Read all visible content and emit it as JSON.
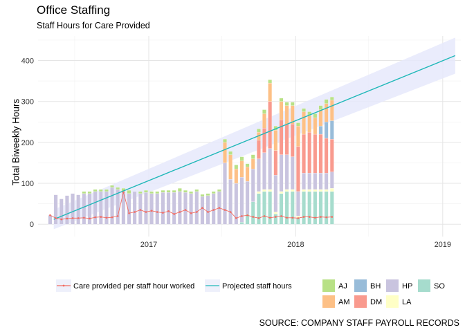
{
  "chart_data": {
    "type": "bar",
    "title": "Office Staffing",
    "subtitle": "Staff Hours for Care Provided",
    "ylabel": "Total Biweekly Hours",
    "xlabel": "",
    "caption": "SOURCE: COMPANY STAFF PAYROLL RECORDS",
    "ylim": [
      -30,
      460
    ],
    "yticks": [
      0,
      100,
      200,
      300,
      400
    ],
    "xlim": [
      "2016-04-01",
      "2019-02-15"
    ],
    "xticks": [
      {
        "date": "2017-01-01",
        "label": "2017"
      },
      {
        "date": "2018-01-01",
        "label": "2018"
      },
      {
        "date": "2019-01-01",
        "label": "2019"
      }
    ],
    "grid": true,
    "legend_position": "bottom",
    "stack_colors": {
      "AJ": "#b8e186",
      "AM": "#fdc086",
      "BH": "#98bcd9",
      "DM": "#f99a8e",
      "HP": "#c9c4df",
      "LA": "#ffffc6",
      "SO": "#a6dccd"
    },
    "stack_order": [
      "SO",
      "LA",
      "HP",
      "DM",
      "BH",
      "AM",
      "AJ"
    ],
    "dates": [
      "2016-05-01",
      "2016-05-15",
      "2016-05-29",
      "2016-06-12",
      "2016-06-26",
      "2016-07-10",
      "2016-07-24",
      "2016-08-07",
      "2016-08-21",
      "2016-09-04",
      "2016-09-18",
      "2016-10-02",
      "2016-10-16",
      "2016-10-30",
      "2016-11-13",
      "2016-11-27",
      "2016-12-11",
      "2016-12-25",
      "2017-01-08",
      "2017-01-22",
      "2017-02-05",
      "2017-02-19",
      "2017-03-05",
      "2017-03-19",
      "2017-04-02",
      "2017-04-16",
      "2017-04-30",
      "2017-05-14",
      "2017-05-28",
      "2017-06-11",
      "2017-06-25",
      "2017-07-09",
      "2017-07-23",
      "2017-08-06",
      "2017-08-20",
      "2017-09-03",
      "2017-09-17",
      "2017-10-01",
      "2017-10-15",
      "2017-10-29",
      "2017-11-12",
      "2017-11-26",
      "2017-12-10",
      "2017-12-24",
      "2018-01-07",
      "2018-01-21",
      "2018-02-04",
      "2018-02-18",
      "2018-03-04",
      "2018-03-18",
      "2018-04-01"
    ],
    "series": [
      {
        "name": "SO",
        "values": [
          0,
          0,
          0,
          0,
          0,
          0,
          0,
          0,
          0,
          0,
          0,
          0,
          0,
          0,
          0,
          0,
          0,
          0,
          0,
          0,
          0,
          0,
          0,
          0,
          0,
          0,
          0,
          0,
          0,
          0,
          0,
          0,
          0,
          0,
          5,
          25,
          55,
          75,
          80,
          80,
          25,
          75,
          80,
          80,
          15,
          80,
          80,
          80,
          80,
          80,
          80
        ]
      },
      {
        "name": "LA",
        "values": [
          0,
          0,
          0,
          0,
          0,
          0,
          0,
          0,
          0,
          0,
          0,
          0,
          0,
          0,
          0,
          0,
          0,
          0,
          0,
          0,
          0,
          0,
          0,
          0,
          0,
          0,
          0,
          0,
          0,
          0,
          0,
          0,
          0,
          0,
          0,
          0,
          0,
          5,
          5,
          5,
          5,
          5,
          5,
          5,
          5,
          5,
          5,
          5,
          5,
          5,
          8
        ]
      },
      {
        "name": "HP",
        "values": [
          22,
          72,
          62,
          70,
          75,
          72,
          75,
          75,
          80,
          80,
          80,
          90,
          85,
          80,
          75,
          80,
          75,
          78,
          75,
          75,
          78,
          78,
          78,
          80,
          78,
          75,
          80,
          68,
          70,
          75,
          80,
          150,
          110,
          100,
          110,
          80,
          80,
          80,
          90,
          100,
          90,
          90,
          85,
          80,
          60,
          40,
          40,
          40,
          40,
          40,
          40
        ]
      },
      {
        "name": "DM",
        "values": [
          0,
          0,
          0,
          0,
          0,
          0,
          0,
          0,
          0,
          0,
          0,
          0,
          0,
          0,
          0,
          0,
          0,
          0,
          0,
          0,
          0,
          0,
          0,
          0,
          0,
          0,
          0,
          0,
          0,
          0,
          0,
          0,
          0,
          0,
          0,
          0,
          0,
          45,
          60,
          115,
          60,
          85,
          75,
          80,
          110,
          95,
          100,
          95,
          95,
          85,
          80
        ]
      },
      {
        "name": "BH",
        "values": [
          0,
          0,
          0,
          0,
          0,
          0,
          0,
          0,
          0,
          0,
          0,
          0,
          0,
          0,
          0,
          0,
          0,
          0,
          0,
          0,
          0,
          0,
          0,
          0,
          0,
          0,
          0,
          0,
          0,
          0,
          0,
          0,
          0,
          0,
          0,
          0,
          0,
          0,
          0,
          0,
          0,
          0,
          0,
          0,
          0,
          0,
          0,
          0,
          20,
          40,
          45
        ]
      },
      {
        "name": "AM",
        "values": [
          0,
          0,
          0,
          0,
          0,
          0,
          0,
          0,
          0,
          0,
          0,
          0,
          0,
          0,
          0,
          0,
          0,
          0,
          0,
          0,
          0,
          0,
          0,
          0,
          0,
          0,
          0,
          0,
          0,
          0,
          0,
          50,
          60,
          35,
          40,
          35,
          25,
          20,
          35,
          45,
          50,
          45,
          45,
          45,
          50,
          55,
          40,
          40,
          40,
          45,
          50
        ]
      },
      {
        "name": "AJ",
        "values": [
          0,
          0,
          0,
          0,
          0,
          0,
          5,
          5,
          5,
          5,
          5,
          5,
          5,
          8,
          8,
          0,
          5,
          5,
          5,
          5,
          5,
          5,
          5,
          8,
          5,
          5,
          5,
          5,
          5,
          5,
          5,
          8,
          8,
          10,
          10,
          8,
          10,
          8,
          10,
          8,
          10,
          8,
          8,
          8,
          8,
          8,
          10,
          10,
          10,
          10,
          8
        ]
      }
    ],
    "line_series": {
      "name": "Care provided per staff hour worked",
      "color": "#f26b61",
      "values": [
        22,
        15,
        12,
        14,
        15,
        15,
        16,
        14,
        17,
        18,
        16,
        17,
        20,
        78,
        27,
        30,
        35,
        30,
        33,
        30,
        28,
        32,
        25,
        30,
        35,
        27,
        30,
        40,
        30,
        35,
        40,
        35,
        30,
        15,
        20,
        22,
        18,
        15,
        20,
        16,
        18,
        20,
        16,
        16,
        15,
        18,
        18,
        16,
        18,
        17,
        18
      ]
    },
    "projection": {
      "name": "Projected staff hours",
      "color": "#1fb8b8",
      "band_color": "#e6e9fb",
      "start": {
        "date": "2016-05-10",
        "value": 12,
        "low": -12,
        "high": 36
      },
      "end": {
        "date": "2019-02-01",
        "value": 412,
        "low": 368,
        "high": 456
      }
    },
    "legend_stack_order": [
      "AJ",
      "AM",
      "BH",
      "DM",
      "HP",
      "LA",
      "SO"
    ]
  }
}
